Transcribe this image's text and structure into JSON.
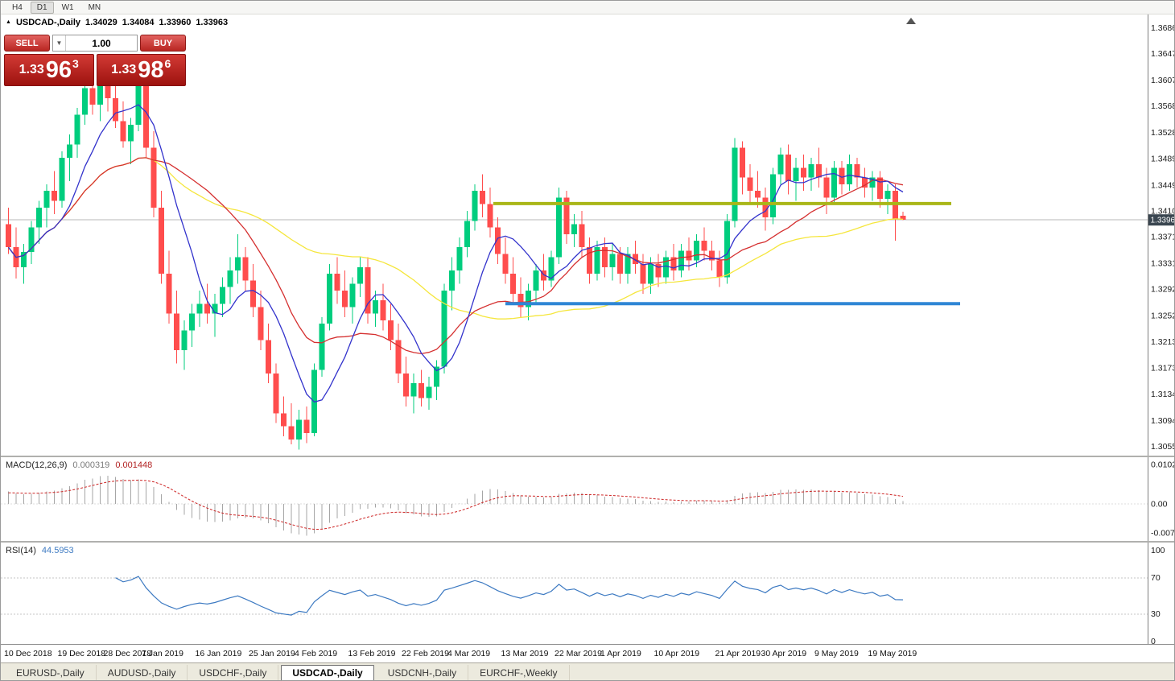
{
  "icons": {
    "collapse": "▲",
    "dropdown": "▼"
  },
  "toolbar": {
    "periods": [
      "H4",
      "D1",
      "W1",
      "MN"
    ],
    "active": "D1"
  },
  "chart_header": {
    "symbol": "USDCAD-,Daily",
    "open": "1.34029",
    "high": "1.34084",
    "low": "1.33960",
    "close": "1.33963"
  },
  "trade": {
    "sell_label": "SELL",
    "buy_label": "BUY",
    "volume": "1.00",
    "bid": {
      "base": "1.33",
      "big": "96",
      "sup": "3"
    },
    "ask": {
      "base": "1.33",
      "big": "98",
      "sup": "6"
    }
  },
  "indicators": {
    "macd": {
      "name": "MACD(12,26,9)",
      "value": "0.000319",
      "signal": "0.001448"
    },
    "rsi": {
      "name": "RSI(14)",
      "value": "44.5953"
    }
  },
  "tabs": [
    {
      "label": "EURUSD-,Daily",
      "active": false
    },
    {
      "label": "AUDUSD-,Daily",
      "active": false
    },
    {
      "label": "USDCHF-,Daily",
      "active": false
    },
    {
      "label": "USDCAD-,Daily",
      "active": true
    },
    {
      "label": "USDCNH-,Daily",
      "active": false
    },
    {
      "label": "EURCHF-,Weekly",
      "active": false
    }
  ],
  "chart_data": {
    "type": "candlestick",
    "symbol": "USDCAD",
    "timeframe": "Daily",
    "colors": {
      "bull": "#00cd7e",
      "bear": "#ff4d4d",
      "ma_fast": "#3333cc",
      "ma_mid": "#d53030",
      "ma_slow": "#f5e63c",
      "resistance": "#a9b618",
      "support": "#2f86d5",
      "histogram": "#a6a6a6",
      "signal": "#cc2222",
      "rsi": "#3d7ac2",
      "price_tag": "#3a4650",
      "panel_red": "#b92622"
    },
    "price_axis": {
      "top": 1.3706,
      "bottom": 1.3041,
      "ticks": [
        "1.36860",
        "1.36470",
        "1.36070",
        "1.35680",
        "1.35280",
        "1.34890",
        "1.34490",
        "1.34100",
        "1.33710",
        "1.33310",
        "1.32920",
        "1.32520",
        "1.32130",
        "1.31730",
        "1.31340",
        "1.30940",
        "1.30550"
      ],
      "current_price": 1.33963,
      "current_price_label": "1.33963"
    },
    "overlays": {
      "resistance_price": 1.3421,
      "support_price": 1.327,
      "ma_periods": {
        "fast": 8,
        "mid": 20,
        "slow": 45
      }
    },
    "macd": {
      "params": [
        12,
        26,
        9
      ],
      "axis_ticks": [
        "0.01022",
        "0.00",
        "-0.00747"
      ],
      "max": 0.01022,
      "min": -0.00747
    },
    "rsi": {
      "period": 14,
      "levels": [
        70,
        30
      ],
      "axis_ticks": [
        "100",
        "70",
        "30",
        "0"
      ]
    },
    "dates": [
      {
        "label": "10 Dec 2018",
        "i": 0
      },
      {
        "label": "19 Dec 2018",
        "i": 7
      },
      {
        "label": "28 Dec 2018",
        "i": 13
      },
      {
        "label": "7 Jan 2019",
        "i": 18
      },
      {
        "label": "16 Jan 2019",
        "i": 25
      },
      {
        "label": "25 Jan 2019",
        "i": 32
      },
      {
        "label": "4 Feb 2019",
        "i": 38
      },
      {
        "label": "13 Feb 2019",
        "i": 45
      },
      {
        "label": "22 Feb 2019",
        "i": 52
      },
      {
        "label": "4 Mar 2019",
        "i": 58
      },
      {
        "label": "13 Mar 2019",
        "i": 65
      },
      {
        "label": "22 Mar 2019",
        "i": 72
      },
      {
        "label": "1 Apr 2019",
        "i": 78
      },
      {
        "label": "10 Apr 2019",
        "i": 85
      },
      {
        "label": "21 Apr 2019",
        "i": 93
      },
      {
        "label": "30 Apr 2019",
        "i": 99
      },
      {
        "label": "9 May 2019",
        "i": 106
      },
      {
        "label": "19 May 2019",
        "i": 113
      }
    ],
    "candles": [
      [
        1.339,
        1.3415,
        1.3345,
        1.3355
      ],
      [
        1.3355,
        1.3385,
        1.3308,
        1.3325
      ],
      [
        1.3325,
        1.336,
        1.33,
        1.3348
      ],
      [
        1.3348,
        1.3395,
        1.333,
        1.3385
      ],
      [
        1.3385,
        1.3425,
        1.336,
        1.3415
      ],
      [
        1.3415,
        1.345,
        1.3385,
        1.344
      ],
      [
        1.344,
        1.347,
        1.3405,
        1.3425
      ],
      [
        1.3425,
        1.35,
        1.3415,
        1.349
      ],
      [
        1.349,
        1.3525,
        1.3455,
        1.351
      ],
      [
        1.351,
        1.3565,
        1.349,
        1.3555
      ],
      [
        1.3555,
        1.3605,
        1.354,
        1.3595
      ],
      [
        1.3595,
        1.364,
        1.3555,
        1.357
      ],
      [
        1.357,
        1.3625,
        1.3545,
        1.3615
      ],
      [
        1.3615,
        1.3645,
        1.356,
        1.358
      ],
      [
        1.358,
        1.36,
        1.3535,
        1.3545
      ],
      [
        1.3545,
        1.3575,
        1.3505,
        1.3515
      ],
      [
        1.3515,
        1.355,
        1.348,
        1.354
      ],
      [
        1.354,
        1.361,
        1.353,
        1.36
      ],
      [
        1.36,
        1.3605,
        1.349,
        1.3505
      ],
      [
        1.3505,
        1.353,
        1.34,
        1.3415
      ],
      [
        1.3415,
        1.344,
        1.33,
        1.3315
      ],
      [
        1.3315,
        1.335,
        1.324,
        1.3255
      ],
      [
        1.3255,
        1.329,
        1.318,
        1.32
      ],
      [
        1.32,
        1.3245,
        1.317,
        1.323
      ],
      [
        1.323,
        1.327,
        1.3205,
        1.3255
      ],
      [
        1.3255,
        1.329,
        1.3235,
        1.327
      ],
      [
        1.327,
        1.33,
        1.324,
        1.3255
      ],
      [
        1.3255,
        1.3285,
        1.322,
        1.327
      ],
      [
        1.327,
        1.331,
        1.325,
        1.3295
      ],
      [
        1.3295,
        1.334,
        1.327,
        1.332
      ],
      [
        1.332,
        1.3375,
        1.33,
        1.334
      ],
      [
        1.334,
        1.3355,
        1.329,
        1.3305
      ],
      [
        1.3305,
        1.333,
        1.325,
        1.3265
      ],
      [
        1.3265,
        1.329,
        1.32,
        1.3215
      ],
      [
        1.3215,
        1.324,
        1.315,
        1.3165
      ],
      [
        1.3165,
        1.318,
        1.309,
        1.3105
      ],
      [
        1.3105,
        1.313,
        1.307,
        1.3085
      ],
      [
        1.3085,
        1.312,
        1.3058,
        1.3065
      ],
      [
        1.3065,
        1.311,
        1.305,
        1.3095
      ],
      [
        1.3095,
        1.3115,
        1.306,
        1.3075
      ],
      [
        1.3075,
        1.318,
        1.307,
        1.317
      ],
      [
        1.317,
        1.325,
        1.316,
        1.324
      ],
      [
        1.324,
        1.333,
        1.323,
        1.3315
      ],
      [
        1.3315,
        1.334,
        1.327,
        1.329
      ],
      [
        1.329,
        1.332,
        1.325,
        1.3265
      ],
      [
        1.3265,
        1.331,
        1.324,
        1.33
      ],
      [
        1.33,
        1.334,
        1.328,
        1.3325
      ],
      [
        1.3325,
        1.334,
        1.324,
        1.3255
      ],
      [
        1.3255,
        1.329,
        1.3235,
        1.3275
      ],
      [
        1.3275,
        1.33,
        1.323,
        1.3245
      ],
      [
        1.3245,
        1.327,
        1.32,
        1.3215
      ],
      [
        1.3215,
        1.324,
        1.315,
        1.3165
      ],
      [
        1.3165,
        1.319,
        1.3115,
        1.313
      ],
      [
        1.313,
        1.3165,
        1.3105,
        1.315
      ],
      [
        1.315,
        1.317,
        1.3115,
        1.3128
      ],
      [
        1.3128,
        1.316,
        1.311,
        1.3145
      ],
      [
        1.3145,
        1.3185,
        1.3125,
        1.3175
      ],
      [
        1.3175,
        1.33,
        1.3165,
        1.329
      ],
      [
        1.329,
        1.334,
        1.326,
        1.332
      ],
      [
        1.332,
        1.337,
        1.33,
        1.3355
      ],
      [
        1.3355,
        1.341,
        1.334,
        1.3395
      ],
      [
        1.3395,
        1.345,
        1.338,
        1.344
      ],
      [
        1.344,
        1.3465,
        1.34,
        1.342
      ],
      [
        1.342,
        1.3445,
        1.337,
        1.3385
      ],
      [
        1.3385,
        1.34,
        1.333,
        1.3345
      ],
      [
        1.3345,
        1.337,
        1.33,
        1.3315
      ],
      [
        1.3315,
        1.334,
        1.327,
        1.3285
      ],
      [
        1.3285,
        1.331,
        1.325,
        1.3265
      ],
      [
        1.3265,
        1.33,
        1.3245,
        1.329
      ],
      [
        1.329,
        1.333,
        1.327,
        1.332
      ],
      [
        1.332,
        1.3345,
        1.329,
        1.3305
      ],
      [
        1.3305,
        1.335,
        1.3295,
        1.334
      ],
      [
        1.334,
        1.3445,
        1.333,
        1.343
      ],
      [
        1.343,
        1.344,
        1.336,
        1.3375
      ],
      [
        1.3375,
        1.3405,
        1.3355,
        1.339
      ],
      [
        1.339,
        1.341,
        1.334,
        1.3355
      ],
      [
        1.3355,
        1.337,
        1.33,
        1.3315
      ],
      [
        1.3315,
        1.3365,
        1.3305,
        1.3355
      ],
      [
        1.3355,
        1.337,
        1.331,
        1.3325
      ],
      [
        1.3325,
        1.336,
        1.3305,
        1.3345
      ],
      [
        1.3345,
        1.3355,
        1.33,
        1.3315
      ],
      [
        1.3315,
        1.3355,
        1.33,
        1.3345
      ],
      [
        1.3345,
        1.3365,
        1.3315,
        1.333
      ],
      [
        1.333,
        1.3345,
        1.3285,
        1.33
      ],
      [
        1.33,
        1.334,
        1.3285,
        1.333
      ],
      [
        1.333,
        1.3345,
        1.3295,
        1.331
      ],
      [
        1.331,
        1.335,
        1.33,
        1.334
      ],
      [
        1.334,
        1.336,
        1.3305,
        1.332
      ],
      [
        1.332,
        1.336,
        1.331,
        1.335
      ],
      [
        1.335,
        1.337,
        1.332,
        1.3335
      ],
      [
        1.3335,
        1.3375,
        1.3325,
        1.3365
      ],
      [
        1.3365,
        1.3385,
        1.3335,
        1.335
      ],
      [
        1.335,
        1.3365,
        1.332,
        1.3335
      ],
      [
        1.3335,
        1.335,
        1.3295,
        1.331
      ],
      [
        1.331,
        1.3405,
        1.33,
        1.3395
      ],
      [
        1.3395,
        1.352,
        1.3385,
        1.3505
      ],
      [
        1.3505,
        1.3515,
        1.3435,
        1.346
      ],
      [
        1.346,
        1.348,
        1.342,
        1.344
      ],
      [
        1.344,
        1.347,
        1.3415,
        1.343
      ],
      [
        1.343,
        1.3445,
        1.338,
        1.34
      ],
      [
        1.34,
        1.3475,
        1.339,
        1.3465
      ],
      [
        1.3465,
        1.3505,
        1.345,
        1.3495
      ],
      [
        1.3495,
        1.351,
        1.3435,
        1.3455
      ],
      [
        1.3455,
        1.349,
        1.3425,
        1.3475
      ],
      [
        1.3475,
        1.3495,
        1.344,
        1.346
      ],
      [
        1.346,
        1.349,
        1.344,
        1.348
      ],
      [
        1.348,
        1.3505,
        1.3445,
        1.346
      ],
      [
        1.346,
        1.3475,
        1.3405,
        1.343
      ],
      [
        1.343,
        1.3485,
        1.342,
        1.3475
      ],
      [
        1.3475,
        1.3485,
        1.3435,
        1.345
      ],
      [
        1.345,
        1.3495,
        1.344,
        1.348
      ],
      [
        1.348,
        1.349,
        1.3445,
        1.346
      ],
      [
        1.346,
        1.3475,
        1.343,
        1.3445
      ],
      [
        1.3445,
        1.347,
        1.3425,
        1.346
      ],
      [
        1.346,
        1.347,
        1.3415,
        1.3428
      ],
      [
        1.3428,
        1.345,
        1.3405,
        1.344
      ],
      [
        1.344,
        1.345,
        1.3365,
        1.3398
      ],
      [
        1.34029,
        1.34084,
        1.3396,
        1.33963
      ]
    ]
  }
}
